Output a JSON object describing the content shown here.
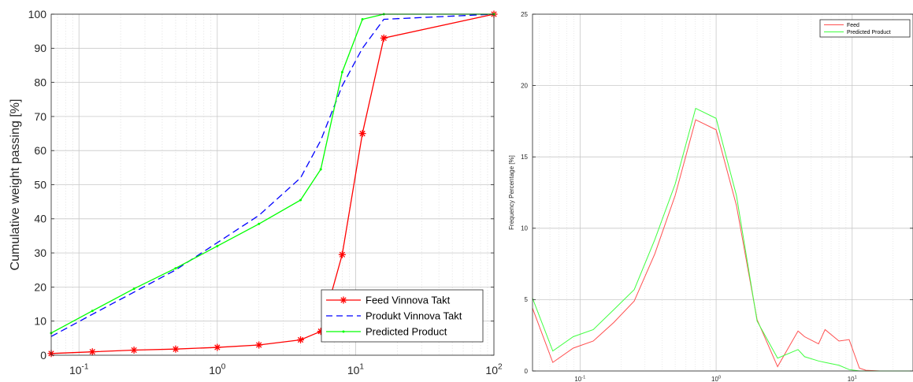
{
  "chart_data": [
    {
      "type": "line",
      "ylabel": "Cumulative weight passing [%]",
      "xscale": "log",
      "xlim": [
        0.063,
        100
      ],
      "ylim": [
        0,
        100
      ],
      "grid": true,
      "legend_placement": "bottom-right",
      "y_ticks": [
        "0",
        "10",
        "20",
        "30",
        "40",
        "50",
        "60",
        "70",
        "80",
        "90",
        "100"
      ],
      "y_tick_values": [
        0,
        10,
        20,
        30,
        40,
        50,
        60,
        70,
        80,
        90,
        100
      ],
      "x_ticks": [
        {
          "value": 0.1,
          "base": "10",
          "exp": "-1"
        },
        {
          "value": 1,
          "base": "10",
          "exp": "0"
        },
        {
          "value": 10,
          "base": "10",
          "exp": "1"
        },
        {
          "value": 100,
          "base": "10",
          "exp": "2"
        }
      ],
      "series": [
        {
          "name": "Feed Vinnova Takt",
          "color": "#ff0000",
          "style": "solid",
          "marker": "star",
          "x": [
            0.063,
            0.125,
            0.25,
            0.5,
            1,
            2,
            4,
            5.6,
            8,
            11.2,
            16,
            100
          ],
          "y": [
            0.5,
            1.0,
            1.5,
            1.8,
            2.3,
            3.0,
            4.5,
            7.0,
            29.5,
            65,
            93,
            100
          ]
        },
        {
          "name": "Produkt Vinnova Takt",
          "color": "#0000ff",
          "style": "dashed",
          "marker": "none",
          "x": [
            0.063,
            0.125,
            0.25,
            0.5,
            1,
            2,
            4,
            5.6,
            8,
            11.2,
            16,
            100
          ],
          "y": [
            5.5,
            12,
            18.5,
            25,
            33,
            41,
            52,
            63,
            79,
            90,
            98.5,
            100
          ]
        },
        {
          "name": "Predicted Product",
          "color": "#00ff00",
          "style": "solid",
          "marker": "dot",
          "x": [
            0.063,
            0.125,
            0.25,
            0.5,
            1,
            2,
            4,
            5.6,
            8,
            11.2,
            16,
            100
          ],
          "y": [
            6.5,
            13,
            19.5,
            25.5,
            32,
            38.5,
            45.5,
            54.5,
            83,
            98.5,
            100,
            100
          ]
        }
      ]
    },
    {
      "type": "line",
      "ylabel": "Frequency Percentage [%]",
      "xscale": "log",
      "xlim": [
        0.0447,
        28
      ],
      "ylim": [
        0,
        25
      ],
      "grid": true,
      "legend_placement": "top-right",
      "y_ticks": [
        "0",
        "5",
        "10",
        "15",
        "20",
        "25"
      ],
      "y_tick_values": [
        0,
        5,
        10,
        15,
        20,
        25
      ],
      "x_ticks": [
        {
          "value": 0.1,
          "base": "10",
          "exp": "-1"
        },
        {
          "value": 1,
          "base": "10",
          "exp": "0"
        },
        {
          "value": 10,
          "base": "10",
          "exp": "1"
        }
      ],
      "series": [
        {
          "name": "Feed",
          "color": "#ff5050",
          "x": [
            0.0447,
            0.063,
            0.089,
            0.125,
            0.177,
            0.25,
            0.354,
            0.5,
            0.707,
            1,
            1.41,
            2,
            2.83,
            4,
            4.47,
            5.66,
            6.32,
            8,
            9.5,
            11.3,
            12.6,
            16,
            22.6,
            28
          ],
          "y": [
            4.4,
            0.6,
            1.6,
            2.1,
            3.4,
            4.9,
            8.2,
            12.3,
            17.6,
            16.9,
            11.6,
            3.6,
            0.3,
            2.8,
            2.4,
            1.9,
            2.9,
            2.1,
            2.2,
            0.2,
            0.05,
            0,
            0,
            0
          ]
        },
        {
          "name": "Predicted Product",
          "color": "#40ff40",
          "x": [
            0.0447,
            0.063,
            0.089,
            0.125,
            0.177,
            0.25,
            0.354,
            0.5,
            0.707,
            1,
            1.41,
            2,
            2.83,
            4,
            4.47,
            5.66,
            6.32,
            8,
            9.5,
            11.3,
            12.6,
            16,
            22.6,
            28
          ],
          "y": [
            5.1,
            1.4,
            2.4,
            2.9,
            4.3,
            5.7,
            9.2,
            13.1,
            18.4,
            17.7,
            12.3,
            3.5,
            0.9,
            1.5,
            1.0,
            0.7,
            0.6,
            0.4,
            0.1,
            0,
            0,
            0,
            0,
            0
          ]
        }
      ]
    }
  ]
}
